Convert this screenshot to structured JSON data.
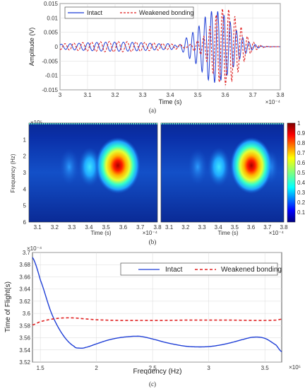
{
  "chart_data": [
    {
      "type": "line",
      "xlabel": "Time (s)",
      "ylabel": "Amplitude (V)",
      "x_multiplier": "×10⁻⁴",
      "xlim": [
        3.0,
        3.8
      ],
      "ylim": [
        -0.015,
        0.015
      ],
      "xticks": [
        "3",
        "3.1",
        "3.2",
        "3.3",
        "3.4",
        "3.5",
        "3.6",
        "3.7",
        "3.8"
      ],
      "yticks": [
        "0.015",
        "0.01",
        "0.005",
        "0",
        "-0.005",
        "-0.01",
        "-0.015"
      ],
      "legend_position": "top-left",
      "series": [
        {
          "name": "Intact",
          "style": "solid",
          "color": "#1f3fd6",
          "description": "oscillating signal, peak amplitude about 0.0125 near 3.57"
        },
        {
          "name": "Weakened bonding",
          "style": "dashed",
          "color": "#e02020",
          "description": "oscillating signal, peak amplitude about 0.0135 near 3.6"
        }
      ],
      "caption": "(a)"
    },
    {
      "type": "heatmap",
      "panels": 2,
      "xlabel": "Time (s)",
      "ylabel": "Frequency (Hz)",
      "x_multiplier": "×10⁻⁴",
      "y_multiplier": "×10⁵",
      "xticks": [
        "3.1",
        "3.2",
        "3.3",
        "3.4",
        "3.5",
        "3.6",
        "3.7",
        "3.8"
      ],
      "yticks": [
        "1",
        "2",
        "3",
        "4",
        "5",
        "6"
      ],
      "colorbar_ticks": [
        "1",
        "0.9",
        "0.8",
        "0.7",
        "0.6",
        "0.5",
        "0.4",
        "0.3",
        "0.2",
        "0.1"
      ],
      "colormap": "jet",
      "hotspots": [
        {
          "panel": 1,
          "time": 3.56,
          "frequency": 2.4,
          "value": 1.0
        },
        {
          "panel": 2,
          "time": 3.59,
          "frequency": 2.4,
          "value": 1.0
        }
      ],
      "caption": "(b)"
    },
    {
      "type": "line",
      "xlabel": "Frequency (Hz)",
      "ylabel": "Time of Flight(s)",
      "x_multiplier": "×10⁵",
      "y_multiplier": "×10⁻⁴",
      "xlim": [
        1.43,
        3.65
      ],
      "ylim": [
        3.52,
        3.7
      ],
      "xticks": [
        "1.5",
        "2",
        "2.5",
        "3",
        "3.5"
      ],
      "yticks": [
        "3.7",
        "3.68",
        "3.66",
        "3.64",
        "3.62",
        "3.6",
        "3.58",
        "3.56",
        "3.54",
        "3.52"
      ],
      "legend_position": "top-right",
      "series": [
        {
          "name": "Intact",
          "style": "solid",
          "color": "#1f3fd6",
          "x": [
            1.43,
            1.5,
            1.6,
            1.7,
            1.8,
            1.85,
            1.9,
            2.0,
            2.1,
            2.2,
            2.3,
            2.35,
            2.4,
            2.5,
            2.6,
            2.7,
            2.8,
            2.9,
            3.0,
            3.1,
            3.2,
            3.3,
            3.4,
            3.5,
            3.6,
            3.65
          ],
          "y": [
            3.692,
            3.655,
            3.6,
            3.565,
            3.546,
            3.543,
            3.544,
            3.55,
            3.556,
            3.56,
            3.562,
            3.5625,
            3.562,
            3.558,
            3.553,
            3.549,
            3.546,
            3.545,
            3.5455,
            3.548,
            3.552,
            3.557,
            3.561,
            3.559,
            3.548,
            3.537
          ]
        },
        {
          "name": "Weakened bonding",
          "style": "dashed",
          "color": "#e02020",
          "x": [
            1.43,
            1.5,
            1.6,
            1.7,
            1.8,
            1.9,
            2.0,
            2.2,
            2.4,
            2.6,
            2.8,
            3.0,
            3.2,
            3.4,
            3.5,
            3.6,
            3.65
          ],
          "y": [
            3.581,
            3.5865,
            3.5905,
            3.5925,
            3.5925,
            3.591,
            3.5895,
            3.5885,
            3.5885,
            3.5885,
            3.589,
            3.589,
            3.589,
            3.5885,
            3.5885,
            3.589,
            3.5905
          ]
        }
      ],
      "caption": "(c)"
    }
  ]
}
